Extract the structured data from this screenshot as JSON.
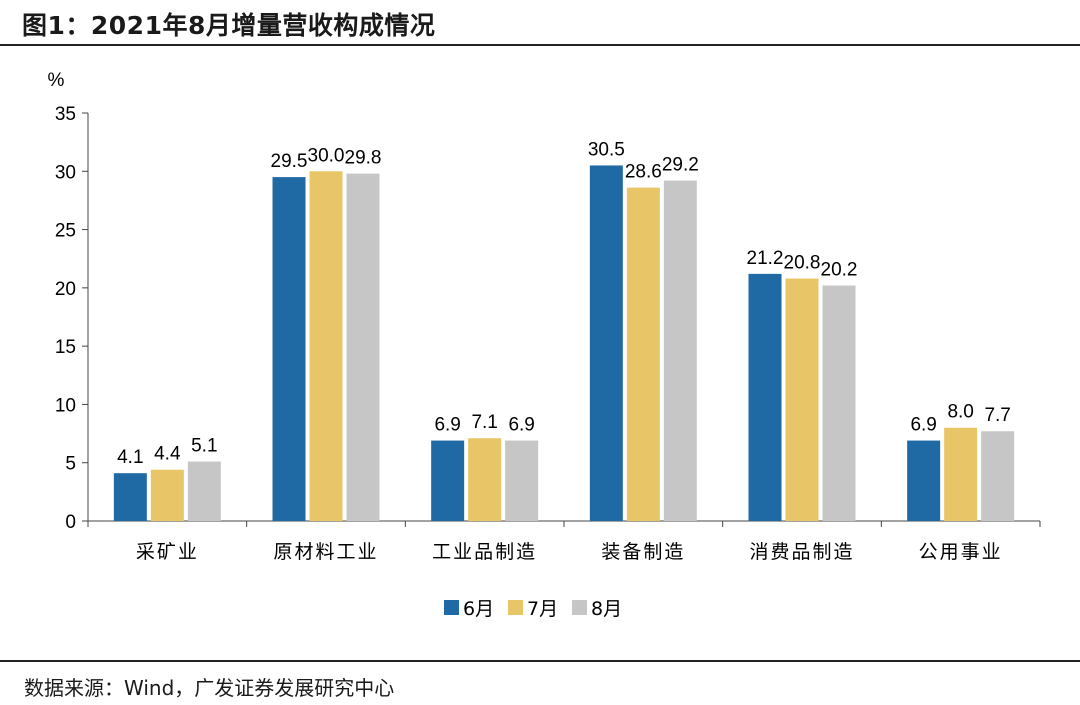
{
  "figure": {
    "title": "图1：2021年8月增量营收构成情况",
    "source": "数据来源：Wind，广发证券发展研究中心"
  },
  "chart_data": {
    "type": "bar",
    "ylabel": "%",
    "ylim": [
      0,
      35
    ],
    "yticks": [
      0,
      5,
      10,
      15,
      20,
      25,
      30,
      35
    ],
    "grid": false,
    "legend_position": "bottom",
    "categories": [
      "采矿业",
      "原材料工业",
      "工业品制造",
      "装备制造",
      "消费品制造",
      "公用事业"
    ],
    "series": [
      {
        "name": "6月",
        "color": "#1f6aa5",
        "values": [
          4.1,
          29.5,
          6.9,
          30.5,
          21.2,
          6.9
        ]
      },
      {
        "name": "7月",
        "color": "#e8c566",
        "values": [
          4.4,
          30.0,
          7.1,
          28.6,
          20.8,
          8.0
        ]
      },
      {
        "name": "8月",
        "color": "#c6c6c6",
        "values": [
          5.1,
          29.8,
          6.9,
          29.2,
          20.2,
          7.7
        ]
      }
    ]
  }
}
